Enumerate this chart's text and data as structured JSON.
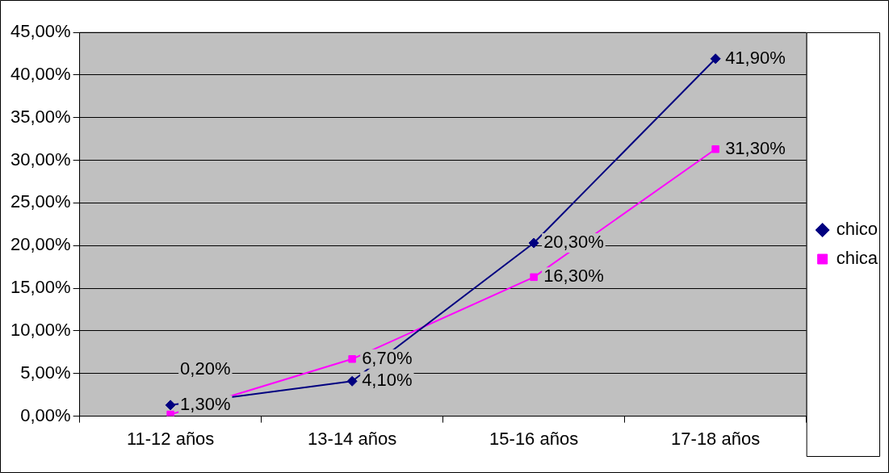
{
  "chart_data": {
    "type": "line",
    "categories": [
      "11-12 años",
      "13-14 años",
      "15-16 años",
      "17-18 años"
    ],
    "series": [
      {
        "name": "chico",
        "color": "#000080",
        "marker": "diamond",
        "values": [
          1.3,
          4.1,
          20.3,
          41.9
        ],
        "value_labels": [
          "1,30%",
          "4,10%",
          "20,30%",
          "41,90%"
        ]
      },
      {
        "name": "chica",
        "color": "#ff00ff",
        "marker": "square",
        "values": [
          0.2,
          6.7,
          16.3,
          31.3
        ],
        "value_labels": [
          "0,20%",
          "6,70%",
          "16,30%",
          "31,30%"
        ]
      }
    ],
    "ylim": [
      0,
      45
    ],
    "yticks": [
      {
        "value": 0,
        "label": "0,00%"
      },
      {
        "value": 5,
        "label": "5,00%"
      },
      {
        "value": 10,
        "label": "10,00%"
      },
      {
        "value": 15,
        "label": "15,00%"
      },
      {
        "value": 20,
        "label": "20,00%"
      },
      {
        "value": 25,
        "label": "25,00%"
      },
      {
        "value": 30,
        "label": "30,00%"
      },
      {
        "value": 35,
        "label": "35,00%"
      },
      {
        "value": 40,
        "label": "40,00%"
      },
      {
        "value": 45,
        "label": "45,00%"
      }
    ],
    "grid": "y",
    "legend": "right",
    "line_style": "solid"
  }
}
